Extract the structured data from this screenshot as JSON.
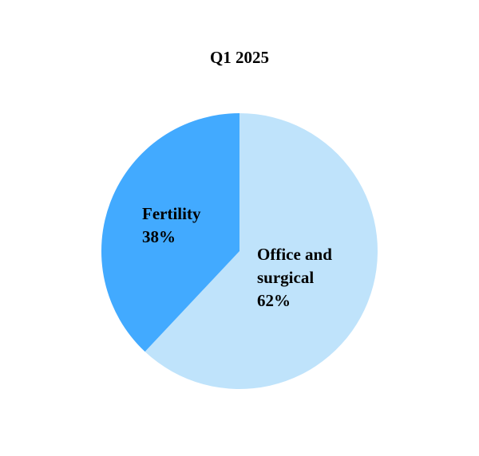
{
  "chart_data": {
    "type": "pie",
    "title": "Q1 2025",
    "categories": [
      "Office and surgical",
      "Fertility"
    ],
    "values": [
      62,
      38
    ],
    "value_labels": [
      "62%",
      "38%"
    ],
    "colors": [
      "#bfe3fb",
      "#42aaff"
    ]
  }
}
